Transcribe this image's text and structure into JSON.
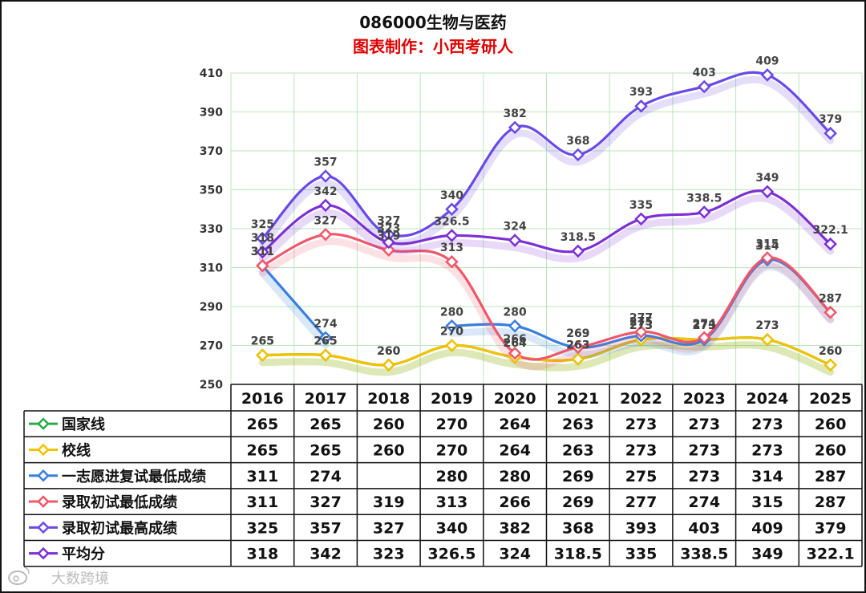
{
  "chart_data": {
    "type": "line",
    "title": "086000生物与医药",
    "subtitle": "图表制作：小西考研人",
    "categories": [
      "2016",
      "2017",
      "2018",
      "2019",
      "2020",
      "2021",
      "2022",
      "2023",
      "2024",
      "2025"
    ],
    "ylim": [
      250,
      410
    ],
    "yticks": [
      250,
      270,
      290,
      310,
      330,
      350,
      370,
      390,
      410
    ],
    "grid": true,
    "series": [
      {
        "name": "国家线",
        "color": "#2ca84a",
        "values": [
          265,
          265,
          260,
          270,
          264,
          263,
          273,
          273,
          273,
          260
        ],
        "labels": [
          "265",
          "265",
          "260",
          "270",
          "264",
          "263",
          "273",
          "273",
          "273",
          "260"
        ]
      },
      {
        "name": "校线",
        "color": "#f2c200",
        "values": [
          265,
          265,
          260,
          270,
          264,
          263,
          273,
          273,
          273,
          260
        ],
        "labels": [
          "265",
          "265",
          "260",
          "270",
          "264",
          "263",
          "273",
          "273",
          "273",
          "260"
        ]
      },
      {
        "name": "一志愿进复试最低成绩",
        "color": "#3a7ee0",
        "values": [
          311,
          274,
          null,
          280,
          280,
          269,
          275,
          273,
          314,
          287
        ],
        "labels": [
          "311",
          "274",
          "",
          "280",
          "280",
          "269",
          "275",
          "273",
          "314",
          "287"
        ]
      },
      {
        "name": "录取初试最低成绩",
        "color": "#f0576a",
        "values": [
          311,
          327,
          319,
          313,
          266,
          269,
          277,
          274,
          315,
          287
        ],
        "labels": [
          "311",
          "327",
          "319",
          "313",
          "266",
          "269",
          "277",
          "274",
          "315",
          "287"
        ]
      },
      {
        "name": "录取初试最高成绩",
        "color": "#6a4ae6",
        "values": [
          325,
          357,
          327,
          340,
          382,
          368,
          393,
          403,
          409,
          379
        ],
        "labels": [
          "325",
          "357",
          "327",
          "340",
          "382",
          "368",
          "393",
          "403",
          "409",
          "379"
        ]
      },
      {
        "name": "平均分",
        "color": "#7d2fd6",
        "values": [
          318,
          342,
          323,
          326.5,
          324,
          318.5,
          335,
          338.5,
          349,
          322.1
        ],
        "labels": [
          "318",
          "342",
          "323",
          "326.5",
          "324",
          "318.5",
          "335",
          "338.5",
          "349",
          "322.1"
        ]
      }
    ]
  },
  "watermark": "大数跨境"
}
